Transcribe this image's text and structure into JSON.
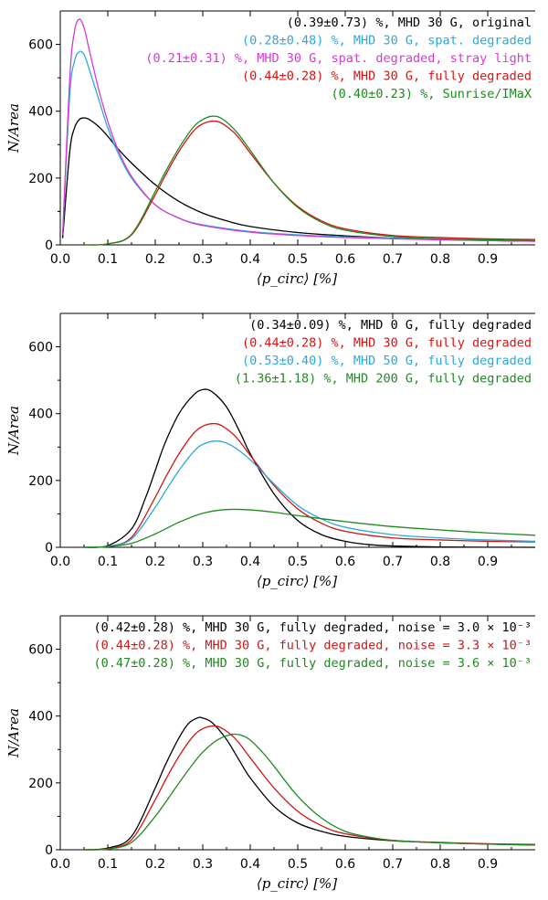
{
  "colors": {
    "black": "#000000",
    "cyan": "#29a9dc",
    "magenta": "#d63ad6",
    "red": "#d21414",
    "green": "#1f8a1f"
  },
  "chart_data": [
    {
      "type": "line",
      "xlabel": "⟨p_circ⟩ [%]",
      "ylabel": "N/Area",
      "xlim": [
        0,
        1.0
      ],
      "ylim": [
        0,
        700
      ],
      "xticks": [
        "0.0",
        "0.1",
        "0.2",
        "0.3",
        "0.4",
        "0.5",
        "0.6",
        "0.7",
        "0.8",
        "0.9"
      ],
      "yticks": [
        "0",
        "200",
        "400",
        "600"
      ],
      "legend_placement": "top-right",
      "series": [
        {
          "name": "(0.39±0.73) %, MHD 30 G, original",
          "color": "black",
          "x": [
            0.005,
            0.02,
            0.03,
            0.04,
            0.05,
            0.06,
            0.08,
            0.1,
            0.12,
            0.15,
            0.2,
            0.25,
            0.3,
            0.35,
            0.4,
            0.5,
            0.6,
            0.7,
            0.8,
            0.9,
            1.0
          ],
          "y": [
            20,
            280,
            350,
            375,
            380,
            376,
            355,
            325,
            290,
            245,
            180,
            130,
            95,
            72,
            55,
            37,
            27,
            20,
            16,
            13,
            11
          ]
        },
        {
          "name": "(0.28±0.48) %, MHD 30 G, spat. degraded",
          "color": "cyan",
          "x": [
            0.005,
            0.02,
            0.03,
            0.04,
            0.05,
            0.06,
            0.08,
            0.1,
            0.12,
            0.15,
            0.2,
            0.25,
            0.3,
            0.4,
            0.5,
            0.6,
            0.8,
            1.0
          ],
          "y": [
            30,
            450,
            550,
            578,
            570,
            530,
            440,
            350,
            280,
            200,
            120,
            80,
            60,
            40,
            30,
            24,
            16,
            12
          ]
        },
        {
          "name": "(0.21±0.31) %, MHD 30 G, spat. degraded, stray light",
          "color": "magenta",
          "x": [
            0.005,
            0.02,
            0.03,
            0.04,
            0.05,
            0.06,
            0.08,
            0.1,
            0.12,
            0.15,
            0.2,
            0.25,
            0.3,
            0.4,
            0.5,
            0.6,
            0.8,
            1.0
          ],
          "y": [
            30,
            500,
            640,
            675,
            650,
            590,
            470,
            370,
            290,
            205,
            120,
            80,
            58,
            38,
            28,
            22,
            15,
            11
          ]
        },
        {
          "name": "(0.44±0.28) %, MHD 30 G, fully degraded",
          "color": "red",
          "x": [
            0.05,
            0.1,
            0.15,
            0.2,
            0.22,
            0.25,
            0.28,
            0.3,
            0.32,
            0.34,
            0.37,
            0.4,
            0.45,
            0.5,
            0.55,
            0.6,
            0.7,
            0.8,
            0.9,
            1.0
          ],
          "y": [
            0,
            3,
            30,
            150,
            205,
            280,
            340,
            362,
            370,
            364,
            330,
            275,
            185,
            115,
            72,
            48,
            28,
            22,
            18,
            16
          ]
        },
        {
          "name": "(0.40±0.23) %, Sunrise/IMaX",
          "color": "green",
          "x": [
            0.05,
            0.1,
            0.15,
            0.2,
            0.22,
            0.25,
            0.28,
            0.3,
            0.32,
            0.34,
            0.37,
            0.4,
            0.45,
            0.5,
            0.55,
            0.6,
            0.7,
            0.8,
            0.9,
            1.0
          ],
          "y": [
            0,
            3,
            32,
            160,
            215,
            290,
            352,
            375,
            385,
            378,
            340,
            283,
            185,
            112,
            68,
            44,
            25,
            18,
            15,
            13
          ]
        }
      ]
    },
    {
      "type": "line",
      "xlabel": "⟨p_circ⟩ [%]",
      "ylabel": "N/Area",
      "xlim": [
        0,
        1.0
      ],
      "ylim": [
        0,
        700
      ],
      "xticks": [
        "0.0",
        "0.1",
        "0.2",
        "0.3",
        "0.4",
        "0.5",
        "0.6",
        "0.7",
        "0.8",
        "0.9"
      ],
      "yticks": [
        "0",
        "200",
        "400",
        "600"
      ],
      "legend_placement": "top-right",
      "series": [
        {
          "name": "(0.34±0.09) %, MHD   0 G, fully degraded",
          "color": "black",
          "x": [
            0.05,
            0.1,
            0.15,
            0.18,
            0.2,
            0.22,
            0.25,
            0.28,
            0.3,
            0.32,
            0.35,
            0.38,
            0.4,
            0.45,
            0.5,
            0.55,
            0.6,
            0.65,
            0.7,
            0.8,
            1.0
          ],
          "y": [
            0,
            5,
            55,
            150,
            230,
            310,
            400,
            455,
            472,
            465,
            420,
            340,
            280,
            160,
            80,
            38,
            18,
            8,
            4,
            1,
            0
          ]
        },
        {
          "name": "(0.44±0.28) %, MHD  30 G, fully degraded",
          "color": "red",
          "x": [
            0.05,
            0.1,
            0.15,
            0.2,
            0.22,
            0.25,
            0.28,
            0.3,
            0.32,
            0.34,
            0.37,
            0.4,
            0.45,
            0.5,
            0.55,
            0.6,
            0.7,
            0.8,
            0.9,
            1.0
          ],
          "y": [
            0,
            3,
            30,
            150,
            205,
            280,
            340,
            362,
            370,
            364,
            330,
            275,
            185,
            115,
            72,
            48,
            28,
            22,
            18,
            16
          ]
        },
        {
          "name": "(0.53±0.40) %, MHD  50 G, fully degraded",
          "color": "cyan",
          "x": [
            0.05,
            0.1,
            0.15,
            0.2,
            0.22,
            0.25,
            0.28,
            0.3,
            0.33,
            0.36,
            0.4,
            0.45,
            0.5,
            0.55,
            0.6,
            0.7,
            0.8,
            0.9,
            1.0
          ],
          "y": [
            0,
            3,
            25,
            120,
            165,
            230,
            285,
            308,
            318,
            305,
            262,
            190,
            125,
            85,
            60,
            38,
            28,
            22,
            18
          ]
        },
        {
          "name": "(1.36±1.18) %, MHD 200 G, fully degraded",
          "color": "green",
          "x": [
            0.05,
            0.1,
            0.15,
            0.2,
            0.25,
            0.3,
            0.35,
            0.4,
            0.45,
            0.5,
            0.6,
            0.7,
            0.8,
            0.9,
            1.0
          ],
          "y": [
            0,
            2,
            12,
            40,
            75,
            102,
            113,
            112,
            105,
            95,
            77,
            62,
            52,
            43,
            36
          ]
        }
      ]
    },
    {
      "type": "line",
      "xlabel": "⟨p_circ⟩ [%]",
      "ylabel": "N/Area",
      "xlim": [
        0,
        1.0
      ],
      "ylim": [
        0,
        700
      ],
      "xticks": [
        "0.0",
        "0.1",
        "0.2",
        "0.3",
        "0.4",
        "0.5",
        "0.6",
        "0.7",
        "0.8",
        "0.9"
      ],
      "yticks": [
        "0",
        "200",
        "400",
        "600"
      ],
      "legend_placement": "top-right",
      "series": [
        {
          "name": "(0.42±0.28) %, MHD 30 G, fully degraded, noise = 3.0 × 10⁻³",
          "color": "black",
          "x": [
            0.05,
            0.1,
            0.15,
            0.2,
            0.22,
            0.25,
            0.27,
            0.29,
            0.3,
            0.32,
            0.35,
            0.38,
            0.4,
            0.45,
            0.5,
            0.55,
            0.6,
            0.7,
            0.8,
            0.9,
            1.0
          ],
          "y": [
            0,
            5,
            40,
            185,
            250,
            335,
            378,
            395,
            394,
            380,
            330,
            260,
            215,
            130,
            80,
            55,
            40,
            27,
            21,
            17,
            14
          ]
        },
        {
          "name": "(0.44±0.28) %, MHD 30 G, fully degraded, noise = 3.3 × 10⁻³",
          "color": "red",
          "x": [
            0.05,
            0.1,
            0.15,
            0.2,
            0.22,
            0.25,
            0.28,
            0.3,
            0.32,
            0.34,
            0.37,
            0.4,
            0.45,
            0.5,
            0.55,
            0.6,
            0.7,
            0.8,
            0.9,
            1.0
          ],
          "y": [
            0,
            3,
            30,
            150,
            205,
            280,
            340,
            362,
            370,
            364,
            330,
            275,
            185,
            115,
            72,
            48,
            28,
            22,
            18,
            16
          ]
        },
        {
          "name": "(0.47±0.28) %, MHD 30 G, fully degraded, noise = 3.6 × 10⁻³",
          "color": "green",
          "x": [
            0.05,
            0.1,
            0.15,
            0.2,
            0.25,
            0.28,
            0.3,
            0.33,
            0.36,
            0.38,
            0.4,
            0.43,
            0.45,
            0.5,
            0.55,
            0.6,
            0.65,
            0.7,
            0.8,
            0.9,
            1.0
          ],
          "y": [
            0,
            2,
            22,
            100,
            200,
            258,
            292,
            328,
            345,
            343,
            328,
            285,
            250,
            160,
            95,
            55,
            38,
            28,
            21,
            17,
            14
          ]
        }
      ]
    }
  ]
}
